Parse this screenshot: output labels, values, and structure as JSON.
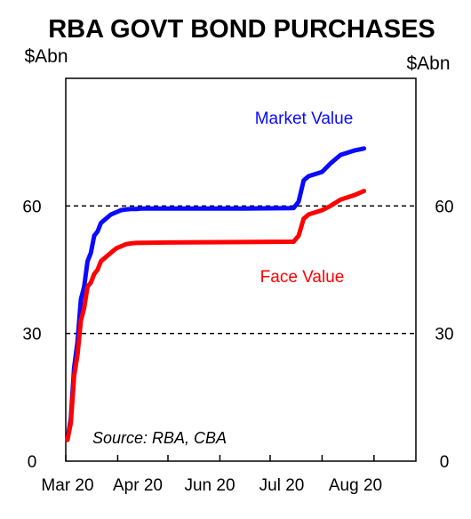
{
  "chart_data": {
    "type": "line",
    "title": "RBA GOVT BOND PURCHASES",
    "left_unit": "$Abn",
    "right_unit": "$Abn",
    "xlabel": "",
    "ylabel": "",
    "x_tick_labels": [
      "Mar 20",
      "Apr 20",
      "Jun 20",
      "Jul 20",
      "Aug 20"
    ],
    "x_ticks": [
      "2020-03-01",
      "2020-04-01",
      "2020-05-01",
      "2020-06-01",
      "2020-07-01",
      "2020-08-01",
      "2020-09-01"
    ],
    "x_range": [
      "2020-03-01",
      "2020-09-26"
    ],
    "ylim": [
      0,
      90
    ],
    "y_ticks": [
      0,
      30,
      60
    ],
    "grid": "dashed horizontal lines at 30 and 60",
    "source": "Source: RBA, CBA",
    "series": [
      {
        "name": "Market Value",
        "color": "#0a0aff",
        "x": [
          "2020-03-02",
          "2020-03-04",
          "2020-03-06",
          "2020-03-08",
          "2020-03-10",
          "2020-03-12",
          "2020-03-14",
          "2020-03-16",
          "2020-03-18",
          "2020-03-20",
          "2020-03-22",
          "2020-03-25",
          "2020-03-28",
          "2020-03-31",
          "2020-04-03",
          "2020-04-06",
          "2020-04-09",
          "2020-04-12",
          "2020-04-15",
          "2020-04-20",
          "2020-05-01",
          "2020-06-15",
          "2020-07-15",
          "2020-07-18",
          "2020-07-21",
          "2020-07-24",
          "2020-08-01",
          "2020-08-06",
          "2020-08-12",
          "2020-08-20",
          "2020-08-26"
        ],
        "y": [
          5,
          10,
          22,
          28,
          38,
          41,
          47,
          49,
          53,
          54,
          56,
          57,
          58,
          58.5,
          59,
          59.2,
          59.3,
          59.3,
          59.4,
          59.4,
          59.4,
          59.4,
          59.5,
          61,
          66,
          67,
          68,
          70,
          72,
          73,
          73.5
        ]
      },
      {
        "name": "Face Value",
        "color": "#ff0000",
        "x": [
          "2020-03-02",
          "2020-03-04",
          "2020-03-06",
          "2020-03-08",
          "2020-03-10",
          "2020-03-12",
          "2020-03-14",
          "2020-03-16",
          "2020-03-18",
          "2020-03-20",
          "2020-03-22",
          "2020-03-25",
          "2020-03-28",
          "2020-03-31",
          "2020-04-03",
          "2020-04-06",
          "2020-04-09",
          "2020-04-12",
          "2020-05-01",
          "2020-06-15",
          "2020-07-15",
          "2020-07-18",
          "2020-07-21",
          "2020-07-24",
          "2020-08-01",
          "2020-08-06",
          "2020-08-12",
          "2020-08-20",
          "2020-08-26"
        ],
        "y": [
          5,
          9,
          20,
          25,
          33,
          36,
          41,
          42,
          44,
          45,
          47,
          48,
          49,
          50,
          50.5,
          51,
          51.2,
          51.3,
          51.4,
          51.5,
          51.6,
          53,
          57,
          58,
          59,
          60,
          61.5,
          62.5,
          63.5
        ]
      }
    ]
  }
}
